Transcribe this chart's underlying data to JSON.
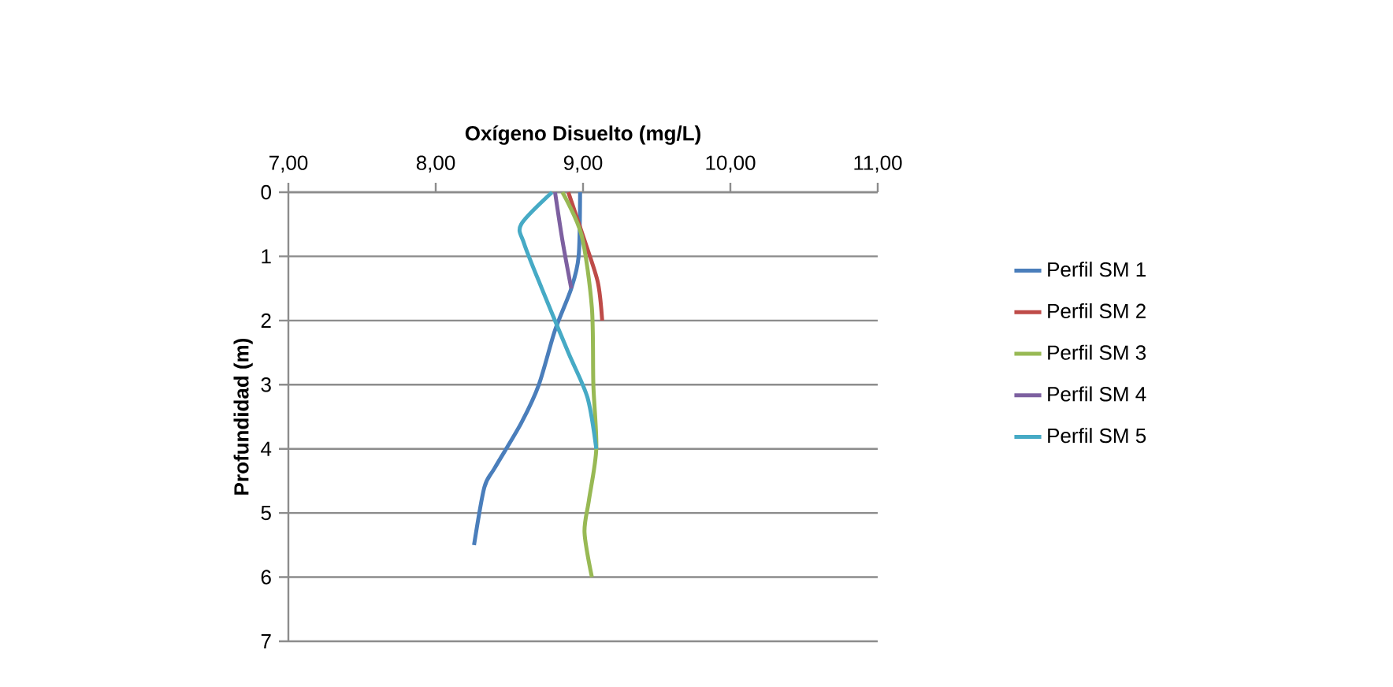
{
  "chart_data": {
    "type": "line",
    "xlabel": "Oxígeno Disuelto (mg/L)",
    "ylabel": "Profundidad (m)",
    "xlim": [
      7,
      11
    ],
    "xticks": [
      {
        "value": 7,
        "label": "7,00"
      },
      {
        "value": 8,
        "label": "8,00"
      },
      {
        "value": 9,
        "label": "9,00"
      },
      {
        "value": 10,
        "label": "10,00"
      },
      {
        "value": 11,
        "label": "11,00"
      }
    ],
    "ylim": [
      7,
      0
    ],
    "yticks": [
      0,
      1,
      2,
      3,
      4,
      5,
      6,
      7
    ],
    "grid": "y",
    "legend": "right",
    "marker": "none",
    "line_style": "solid",
    "series": [
      {
        "name": "Perfil SM 1",
        "color": "#4a7ebb",
        "x": [
          8.98,
          8.97,
          8.92,
          8.81,
          8.7,
          8.58,
          8.4,
          8.33,
          8.26
        ],
        "values": [
          0,
          1,
          1.5,
          2.15,
          3,
          3.6,
          4.3,
          4.6,
          5.5
        ]
      },
      {
        "name": "Perfil SM 2",
        "color": "#be4b48",
        "x": [
          8.9,
          9.01,
          9.1,
          9.13
        ],
        "values": [
          0,
          0.75,
          1.4,
          2
        ]
      },
      {
        "name": "Perfil SM 3",
        "color": "#98b954",
        "x": [
          8.86,
          8.99,
          9.06,
          9.07,
          9.09,
          9.04,
          9.01,
          9.06
        ],
        "values": [
          0,
          0.67,
          1.8,
          3,
          4,
          4.8,
          5.3,
          6
        ]
      },
      {
        "name": "Perfil SM 4",
        "color": "#7d60a0",
        "x": [
          8.81,
          8.86,
          8.92
        ],
        "values": [
          0,
          0.75,
          1.5
        ]
      },
      {
        "name": "Perfil SM 5",
        "color": "#46aac5",
        "x": [
          8.79,
          8.58,
          8.6,
          8.72,
          8.9,
          9.03,
          9.09
        ],
        "values": [
          0,
          0.5,
          0.8,
          1.5,
          2.5,
          3.2,
          4
        ]
      }
    ]
  }
}
